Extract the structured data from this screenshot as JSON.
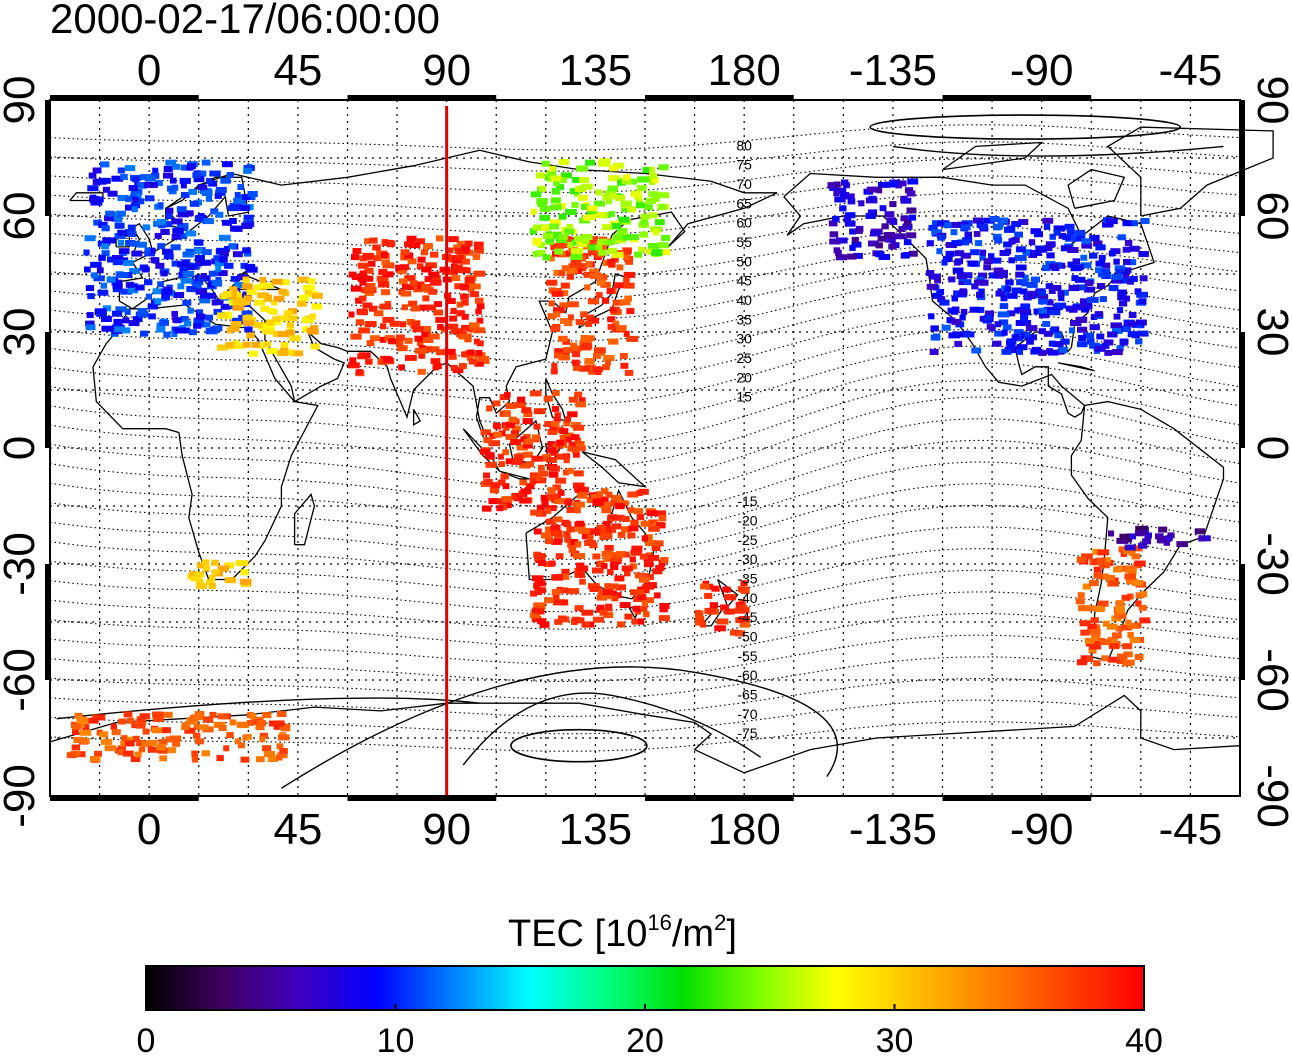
{
  "title": "2000-02-17/06:00:00",
  "lon_ticks": [
    "0",
    "45",
    "90",
    "135",
    "180",
    "-135",
    "-90",
    "-45"
  ],
  "lat_ticks": [
    "90",
    "60",
    "30",
    "0",
    "-30",
    "-60",
    "-90"
  ],
  "contour_labels_north": [
    "80",
    "75",
    "70",
    "65",
    "60",
    "55",
    "50",
    "45",
    "40",
    "35",
    "30",
    "25",
    "20",
    "15"
  ],
  "contour_labels_south": [
    "-15",
    "-20",
    "-25",
    "-30",
    "-35",
    "-40",
    "-45",
    "-50",
    "-55",
    "-60",
    "-65",
    "-70",
    "-75"
  ],
  "colorbar": {
    "title_prefix": "TEC  [10",
    "title_sup1": "16",
    "title_mid": "/m",
    "title_sup2": "2",
    "title_suffix": "]",
    "ticks": [
      "0",
      "10",
      "20",
      "30",
      "40"
    ],
    "colors": [
      "#000000",
      "#400060",
      "#4000c0",
      "#0000ff",
      "#0080ff",
      "#00ffff",
      "#00ff80",
      "#00e000",
      "#80ff00",
      "#ffff00",
      "#ffc000",
      "#ff8000",
      "#ff4000",
      "#ff0000"
    ]
  },
  "subsolar_longitude": "90",
  "chart_data": {
    "type": "heatmap",
    "quantity": "TEC",
    "unit": "10^16/m^2",
    "color_range": [
      0,
      40
    ],
    "x_range": [
      -30,
      330
    ],
    "y_range": [
      -90,
      90
    ],
    "clusters": [
      {
        "lon_range": [
          -20,
          30
        ],
        "lat_range": [
          30,
          75
        ],
        "tec": 10
      },
      {
        "lon_range": [
          20,
          50
        ],
        "lat_range": [
          25,
          45
        ],
        "tec": 30
      },
      {
        "lon_range": [
          60,
          100
        ],
        "lat_range": [
          20,
          55
        ],
        "tec": 38
      },
      {
        "lon_range": [
          120,
          145
        ],
        "lat_range": [
          20,
          55
        ],
        "tec": 37
      },
      {
        "lon_range": [
          115,
          155
        ],
        "lat_range": [
          50,
          75
        ],
        "tec": 25
      },
      {
        "lon_range": [
          100,
          130
        ],
        "lat_range": [
          -15,
          15
        ],
        "tec": 38
      },
      {
        "lon_range": [
          115,
          155
        ],
        "lat_range": [
          -45,
          -10
        ],
        "tec": 38
      },
      {
        "lon_range": [
          165,
          180
        ],
        "lat_range": [
          -48,
          -34
        ],
        "tec": 38
      },
      {
        "lon_range": [
          205,
          230
        ],
        "lat_range": [
          50,
          70
        ],
        "tec": 7
      },
      {
        "lon_range": [
          235,
          300
        ],
        "lat_range": [
          25,
          60
        ],
        "tec": 9
      },
      {
        "lon_range": [
          280,
          300
        ],
        "lat_range": [
          -55,
          -25
        ],
        "tec": 36
      },
      {
        "lon_range": [
          290,
          320
        ],
        "lat_range": [
          -25,
          -20
        ],
        "tec": 5
      },
      {
        "lon_range": [
          -25,
          40
        ],
        "lat_range": [
          -80,
          -68
        ],
        "tec": 36
      },
      {
        "lon_range": [
          10,
          30
        ],
        "lat_range": [
          -35,
          -28
        ],
        "tec": 30
      }
    ]
  }
}
